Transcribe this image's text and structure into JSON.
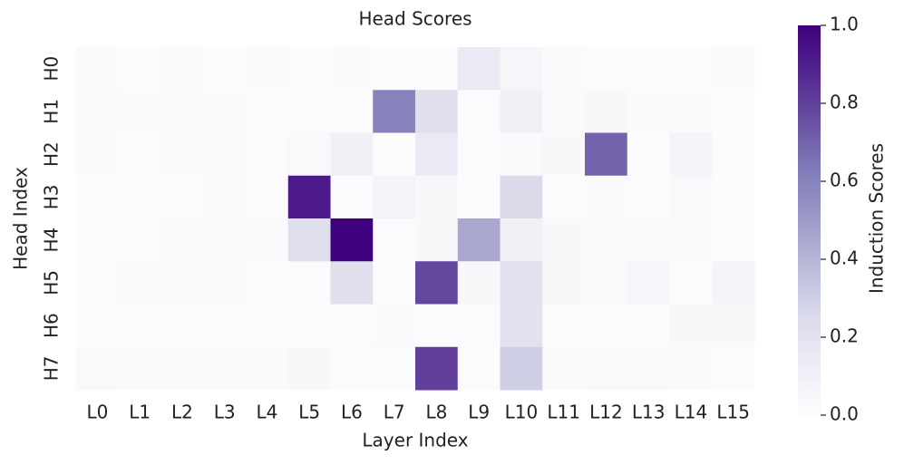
{
  "chart_data": {
    "type": "heatmap",
    "title": "Head Scores",
    "x_label": "Layer Index",
    "y_label": "Head Index",
    "colorbar_label": "Induction Scores",
    "x_categories": [
      "L0",
      "L1",
      "L2",
      "L3",
      "L4",
      "L5",
      "L6",
      "L7",
      "L8",
      "L9",
      "L10",
      "L11",
      "L12",
      "L13",
      "L14",
      "L15"
    ],
    "y_categories": [
      "H0",
      "H1",
      "H2",
      "H3",
      "H4",
      "H5",
      "H6",
      "H7"
    ],
    "values": [
      [
        0.02,
        0.01,
        0.02,
        0.01,
        0.02,
        0.01,
        0.02,
        0.01,
        0.01,
        0.15,
        0.05,
        0.02,
        0.01,
        0.01,
        0.01,
        0.02
      ],
      [
        0.02,
        0.02,
        0.02,
        0.02,
        0.01,
        0.01,
        0.01,
        0.6,
        0.22,
        0.01,
        0.1,
        0.02,
        0.04,
        0.02,
        0.02,
        0.01
      ],
      [
        0.02,
        0.01,
        0.03,
        0.02,
        0.01,
        0.03,
        0.1,
        0.0,
        0.15,
        0.01,
        0.02,
        0.04,
        0.7,
        0.0,
        0.06,
        0.01
      ],
      [
        0.01,
        0.01,
        0.01,
        0.02,
        0.01,
        0.92,
        0.01,
        0.07,
        0.04,
        0.01,
        0.25,
        0.01,
        0.02,
        0.01,
        0.03,
        0.01
      ],
      [
        0.01,
        0.01,
        0.02,
        0.03,
        0.03,
        0.22,
        1.0,
        0.01,
        0.04,
        0.45,
        0.1,
        0.04,
        0.03,
        0.03,
        0.02,
        0.01
      ],
      [
        0.01,
        0.02,
        0.02,
        0.02,
        0.01,
        0.01,
        0.22,
        0.01,
        0.78,
        0.04,
        0.2,
        0.04,
        0.03,
        0.05,
        0.01,
        0.06
      ],
      [
        0.01,
        0.01,
        0.01,
        0.01,
        0.01,
        0.01,
        0.01,
        0.02,
        0.01,
        0.01,
        0.2,
        0.01,
        0.01,
        0.01,
        0.04,
        0.04
      ],
      [
        0.03,
        0.02,
        0.02,
        0.02,
        0.02,
        0.04,
        0.01,
        0.01,
        0.8,
        0.01,
        0.3,
        0.02,
        0.03,
        0.03,
        0.02,
        0.01
      ]
    ],
    "zlim": [
      0,
      1
    ],
    "zticks": [
      {
        "value": 0,
        "label": "0.0"
      },
      {
        "value": 0.2,
        "label": "0.2"
      },
      {
        "value": 0.4,
        "label": "0.4"
      },
      {
        "value": 0.6,
        "label": "0.6"
      },
      {
        "value": 0.8,
        "label": "0.8"
      },
      {
        "value": 1,
        "label": "1.0"
      }
    ],
    "colormap": [
      "#fcfbfd",
      "#efedf5",
      "#dadaeb",
      "#bcbddc",
      "#9e9ac8",
      "#807dba",
      "#6a51a3",
      "#54278f",
      "#3f007d"
    ]
  }
}
